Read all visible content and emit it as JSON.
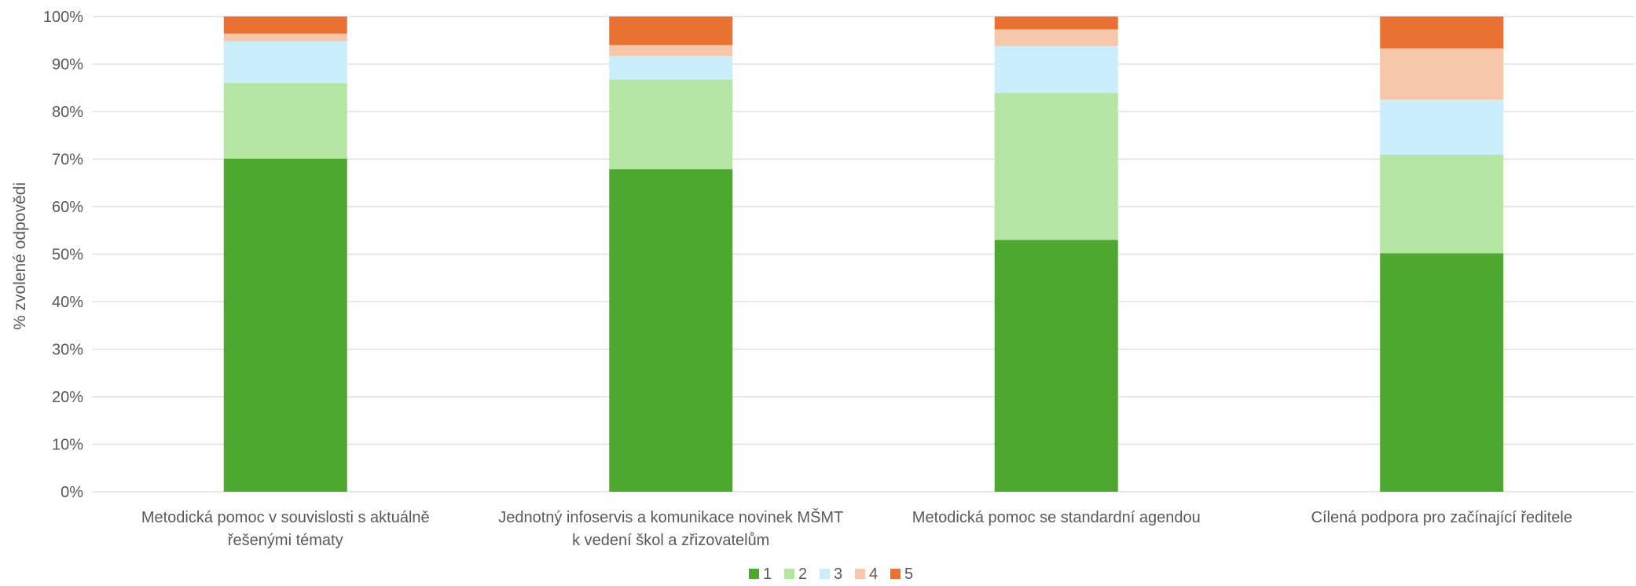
{
  "chart_data": {
    "type": "bar",
    "stacked": true,
    "percent": true,
    "ylabel": "% zvolené odpovědi",
    "ylim": [
      0,
      100
    ],
    "yticks": [
      "0%",
      "10%",
      "20%",
      "30%",
      "40%",
      "50%",
      "60%",
      "70%",
      "80%",
      "90%",
      "100%"
    ],
    "grid": true,
    "legend_position": "bottom",
    "categories": [
      [
        "Metodická pomoc v souvislosti s aktuálně",
        "řešenými tématy"
      ],
      [
        "Jednotný infoservis a komunikace novinek MŠMT",
        "k vedení škol a zřizovatelům"
      ],
      [
        "Metodická pomoc se standardní agendou"
      ],
      [
        "Cílená podpora pro začínající ředitele"
      ]
    ],
    "series": [
      {
        "name": "1",
        "color": "#4ea72e",
        "values": [
          70.1,
          67.9,
          53.0,
          50.2
        ]
      },
      {
        "name": "2",
        "color": "#b4e5a2",
        "values": [
          15.9,
          18.8,
          30.9,
          20.7
        ]
      },
      {
        "name": "3",
        "color": "#caeefb",
        "values": [
          8.8,
          5.0,
          9.9,
          11.6
        ]
      },
      {
        "name": "4",
        "color": "#f7c7ac",
        "values": [
          1.6,
          2.3,
          3.5,
          10.8
        ]
      },
      {
        "name": "5",
        "color": "#e97132",
        "values": [
          3.6,
          6.0,
          2.7,
          6.7
        ]
      }
    ]
  }
}
